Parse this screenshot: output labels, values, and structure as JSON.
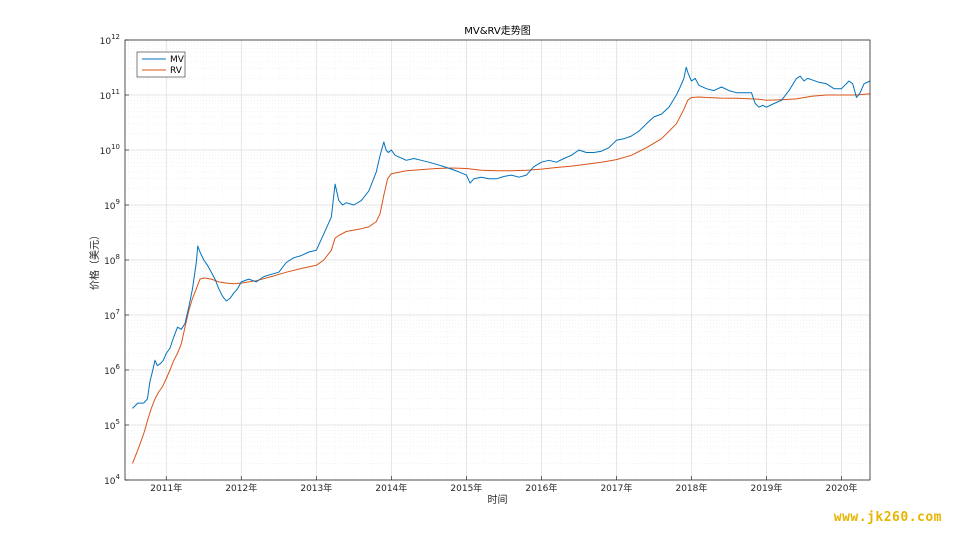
{
  "watermark": "www.jk260.com",
  "chart_data": {
    "type": "line",
    "title": "MV&RV走势图",
    "xlabel": "时间",
    "ylabel": "价格（美元）",
    "yscale": "log",
    "ylim": [
      10000,
      1000000000000
    ],
    "xlim": [
      2010.45,
      2020.38
    ],
    "grid": true,
    "legend_position": "top-left",
    "x_ticks": [
      {
        "value": 2011,
        "label": "2011年"
      },
      {
        "value": 2012,
        "label": "2012年"
      },
      {
        "value": 2013,
        "label": "2013年"
      },
      {
        "value": 2014,
        "label": "2014年"
      },
      {
        "value": 2015,
        "label": "2015年"
      },
      {
        "value": 2016,
        "label": "2016年"
      },
      {
        "value": 2017,
        "label": "2017年"
      },
      {
        "value": 2018,
        "label": "2018年"
      },
      {
        "value": 2019,
        "label": "2019年"
      },
      {
        "value": 2020,
        "label": "2020年"
      }
    ],
    "y_ticks": [
      {
        "value": 10000,
        "base": "10",
        "exp": "4"
      },
      {
        "value": 100000,
        "base": "10",
        "exp": "5"
      },
      {
        "value": 1000000,
        "base": "10",
        "exp": "6"
      },
      {
        "value": 10000000,
        "base": "10",
        "exp": "7"
      },
      {
        "value": 100000000,
        "base": "10",
        "exp": "8"
      },
      {
        "value": 1000000000,
        "base": "10",
        "exp": "9"
      },
      {
        "value": 10000000000,
        "base": "10",
        "exp": "10"
      },
      {
        "value": 100000000000,
        "base": "10",
        "exp": "11"
      },
      {
        "value": 1000000000000,
        "base": "10",
        "exp": "12"
      }
    ],
    "series": [
      {
        "name": "MV",
        "color": "#0072bd",
        "x": [
          2010.55,
          2010.62,
          2010.7,
          2010.75,
          2010.78,
          2010.82,
          2010.85,
          2010.88,
          2010.92,
          2010.96,
          2011.0,
          2011.05,
          2011.1,
          2011.15,
          2011.2,
          2011.25,
          2011.3,
          2011.35,
          2011.4,
          2011.42,
          2011.45,
          2011.5,
          2011.55,
          2011.6,
          2011.65,
          2011.7,
          2011.75,
          2011.8,
          2011.85,
          2011.9,
          2011.95,
          2012.0,
          2012.1,
          2012.2,
          2012.3,
          2012.4,
          2012.5,
          2012.6,
          2012.7,
          2012.8,
          2012.9,
          2013.0,
          2013.1,
          2013.2,
          2013.25,
          2013.3,
          2013.35,
          2013.4,
          2013.5,
          2013.6,
          2013.7,
          2013.8,
          2013.85,
          2013.9,
          2013.93,
          2013.96,
          2014.0,
          2014.05,
          2014.1,
          2014.2,
          2014.3,
          2014.4,
          2014.5,
          2014.6,
          2014.7,
          2014.8,
          2014.9,
          2015.0,
          2015.05,
          2015.1,
          2015.2,
          2015.3,
          2015.4,
          2015.5,
          2015.6,
          2015.7,
          2015.8,
          2015.9,
          2016.0,
          2016.1,
          2016.2,
          2016.3,
          2016.4,
          2016.5,
          2016.6,
          2016.7,
          2016.8,
          2016.9,
          2017.0,
          2017.1,
          2017.2,
          2017.3,
          2017.4,
          2017.5,
          2017.6,
          2017.7,
          2017.8,
          2017.85,
          2017.9,
          2017.93,
          2017.96,
          2018.0,
          2018.05,
          2018.1,
          2018.2,
          2018.3,
          2018.4,
          2018.5,
          2018.6,
          2018.7,
          2018.8,
          2018.85,
          2018.9,
          2018.95,
          2019.0,
          2019.1,
          2019.2,
          2019.3,
          2019.4,
          2019.45,
          2019.5,
          2019.55,
          2019.6,
          2019.7,
          2019.8,
          2019.9,
          2020.0,
          2020.1,
          2020.15,
          2020.2,
          2020.25,
          2020.3,
          2020.38
        ],
        "y": [
          200000,
          250000,
          250000,
          300000,
          600000,
          1000000,
          1500000,
          1200000,
          1300000,
          1500000,
          2000000,
          2500000,
          4000000,
          6000000,
          5500000,
          7000000,
          14000000,
          30000000,
          90000000,
          180000000,
          140000000,
          100000000,
          80000000,
          60000000,
          45000000,
          30000000,
          22000000,
          18000000,
          20000000,
          25000000,
          30000000,
          40000000,
          45000000,
          40000000,
          50000000,
          55000000,
          60000000,
          90000000,
          110000000,
          120000000,
          140000000,
          150000000,
          300000000,
          600000000,
          2400000000,
          1200000000,
          1000000000,
          1100000000,
          1000000000,
          1200000000,
          1800000000,
          4000000000,
          8000000000,
          14000000000,
          10000000000,
          9000000000,
          10000000000,
          8000000000,
          7500000000,
          6500000000,
          7000000000,
          6500000000,
          6000000000,
          5500000000,
          5000000000,
          4500000000,
          4000000000,
          3500000000,
          2500000000,
          3000000000,
          3200000000,
          3000000000,
          3000000000,
          3300000000,
          3500000000,
          3200000000,
          3500000000,
          5000000000,
          6000000000,
          6500000000,
          6000000000,
          7000000000,
          8000000000,
          10000000000,
          9000000000,
          9000000000,
          9500000000,
          11000000000,
          15000000000,
          16000000000,
          18000000000,
          22000000000,
          30000000000,
          40000000000,
          45000000000,
          60000000000,
          100000000000,
          140000000000,
          200000000000,
          320000000000,
          240000000000,
          180000000000,
          200000000000,
          150000000000,
          130000000000,
          120000000000,
          140000000000,
          120000000000,
          110000000000,
          110000000000,
          110000000000,
          70000000000,
          60000000000,
          65000000000,
          60000000000,
          70000000000,
          80000000000,
          120000000000,
          200000000000,
          220000000000,
          180000000000,
          200000000000,
          190000000000,
          170000000000,
          160000000000,
          130000000000,
          130000000000,
          180000000000,
          160000000000,
          90000000000,
          110000000000,
          160000000000,
          180000000000
        ],
        "endpoint_label": ""
      },
      {
        "name": "RV",
        "color": "#d95319",
        "x": [
          2010.55,
          2010.6,
          2010.65,
          2010.7,
          2010.75,
          2010.8,
          2010.85,
          2010.9,
          2010.95,
          2011.0,
          2011.05,
          2011.1,
          2011.15,
          2011.2,
          2011.25,
          2011.3,
          2011.35,
          2011.4,
          2011.45,
          2011.5,
          2011.55,
          2011.6,
          2011.7,
          2011.8,
          2011.9,
          2012.0,
          2012.2,
          2012.4,
          2012.6,
          2012.8,
          2013.0,
          2013.1,
          2013.2,
          2013.25,
          2013.3,
          2013.4,
          2013.5,
          2013.6,
          2013.7,
          2013.8,
          2013.85,
          2013.9,
          2013.95,
          2014.0,
          2014.2,
          2014.4,
          2014.6,
          2014.8,
          2015.0,
          2015.2,
          2015.4,
          2015.6,
          2015.8,
          2016.0,
          2016.2,
          2016.4,
          2016.6,
          2016.8,
          2017.0,
          2017.2,
          2017.4,
          2017.6,
          2017.8,
          2017.9,
          2017.95,
          2018.0,
          2018.1,
          2018.2,
          2018.4,
          2018.6,
          2018.8,
          2018.9,
          2019.0,
          2019.2,
          2019.4,
          2019.6,
          2019.8,
          2020.0,
          2020.2,
          2020.38
        ],
        "y": [
          20000,
          30000,
          45000,
          70000,
          120000,
          200000,
          300000,
          400000,
          500000,
          700000,
          1000000,
          1500000,
          2000000,
          3000000,
          6000000,
          12000000,
          20000000,
          30000000,
          45000000,
          47000000,
          46000000,
          45000000,
          40000000,
          38000000,
          37000000,
          38000000,
          42000000,
          50000000,
          60000000,
          70000000,
          80000000,
          100000000,
          150000000,
          250000000,
          280000000,
          330000000,
          350000000,
          370000000,
          400000000,
          500000000,
          700000000,
          1500000000,
          3000000000,
          3700000000,
          4200000000,
          4400000000,
          4600000000,
          4700000000,
          4600000000,
          4300000000,
          4200000000,
          4200000000,
          4300000000,
          4500000000,
          4800000000,
          5100000000,
          5500000000,
          6000000000,
          6700000000,
          8000000000,
          11000000000,
          16000000000,
          30000000000,
          55000000000,
          80000000000,
          90000000000,
          92000000000,
          90000000000,
          88000000000,
          87000000000,
          85000000000,
          84000000000,
          80000000000,
          82000000000,
          85000000000,
          95000000000,
          100000000000,
          100000000000,
          100000000000,
          105000000000
        ]
      }
    ]
  }
}
